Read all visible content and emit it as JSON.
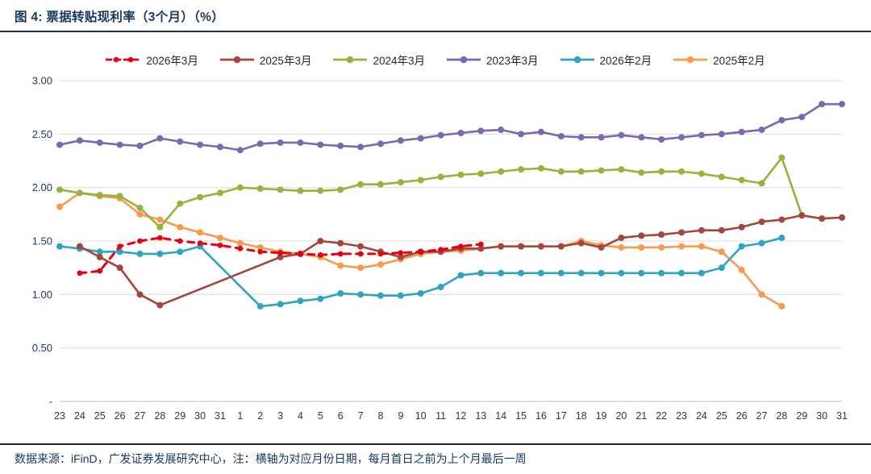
{
  "header": {
    "title": "图 4:  票据转贴现利率（3个月）（%）"
  },
  "footer": {
    "text": "数据来源：iFinD，广发证券发展研究中心，注：横轴为对应月份日期，每月首日之前为上个月最后一周"
  },
  "colors": {
    "title_text": "#17375E",
    "header_rule": "#17375E",
    "footer_rule": "#262626",
    "grid": "#DCDCDC",
    "axis_line": "#BFBFBF",
    "tick_text": "#1F3864"
  },
  "chart_data": {
    "type": "line",
    "title": "票据转贴现利率（3个月）（%）",
    "xlabel": "",
    "ylabel": "%",
    "ylim": [
      0,
      3
    ],
    "grid": true,
    "legend_position": "top",
    "yticks": [
      {
        "label": "3.00",
        "value": 3
      },
      {
        "label": "2.50",
        "value": 2.5
      },
      {
        "label": "2.00",
        "value": 2
      },
      {
        "label": "1.50",
        "value": 1.5
      },
      {
        "label": "1.00",
        "value": 1
      },
      {
        "label": "0.50",
        "value": 0.5
      },
      {
        "label": "-",
        "value": 0
      }
    ],
    "categories": [
      "23",
      "24",
      "25",
      "26",
      "27",
      "28",
      "29",
      "30",
      "31",
      "1",
      "2",
      "3",
      "4",
      "5",
      "6",
      "7",
      "8",
      "9",
      "10",
      "11",
      "12",
      "13",
      "14",
      "15",
      "16",
      "17",
      "18",
      "19",
      "20",
      "21",
      "22",
      "23",
      "24",
      "25",
      "26",
      "27",
      "28",
      "29",
      "30",
      "31"
    ],
    "series": [
      {
        "name": "2026年3月",
        "color": "#E60012",
        "dash": "8 7",
        "values": [
          null,
          1.2,
          1.22,
          1.45,
          1.5,
          1.53,
          1.5,
          1.48,
          1.46,
          1.43,
          1.4,
          1.39,
          1.38,
          1.37,
          1.38,
          1.38,
          1.38,
          1.39,
          1.4,
          1.42,
          1.45,
          1.47,
          null,
          null,
          null,
          null,
          null,
          null,
          null,
          null,
          null,
          null,
          null,
          null,
          null,
          null,
          null,
          null,
          null,
          null
        ]
      },
      {
        "name": "2025年3月",
        "color": "#A5463C",
        "dash": null,
        "values": [
          null,
          1.45,
          1.35,
          1.25,
          1.0,
          0.9,
          null,
          null,
          null,
          null,
          null,
          1.35,
          1.38,
          1.5,
          1.48,
          1.45,
          1.4,
          1.35,
          1.4,
          1.4,
          1.43,
          1.43,
          1.45,
          1.45,
          1.45,
          1.45,
          1.48,
          1.44,
          1.53,
          1.55,
          1.56,
          1.58,
          1.6,
          1.6,
          1.63,
          1.68,
          1.7,
          1.74,
          1.71,
          1.72
        ]
      },
      {
        "name": "2024年3月",
        "color": "#95B43C",
        "dash": null,
        "values": [
          1.98,
          1.95,
          1.93,
          1.92,
          1.81,
          1.63,
          1.85,
          1.91,
          1.95,
          2.0,
          1.99,
          1.98,
          1.97,
          1.97,
          1.98,
          2.03,
          2.03,
          2.05,
          2.07,
          2.1,
          2.12,
          2.13,
          2.15,
          2.17,
          2.18,
          2.15,
          2.15,
          2.16,
          2.17,
          2.14,
          2.15,
          2.15,
          2.13,
          2.1,
          2.07,
          2.04,
          2.28,
          1.74,
          null,
          null
        ]
      },
      {
        "name": "2023年3月",
        "color": "#7B68AE",
        "dash": null,
        "values": [
          2.4,
          2.44,
          2.42,
          2.4,
          2.39,
          2.46,
          2.43,
          2.4,
          2.38,
          2.35,
          2.41,
          2.42,
          2.42,
          2.4,
          2.39,
          2.38,
          2.41,
          2.44,
          2.46,
          2.49,
          2.51,
          2.53,
          2.54,
          2.5,
          2.52,
          2.48,
          2.47,
          2.47,
          2.49,
          2.47,
          2.45,
          2.47,
          2.49,
          2.5,
          2.52,
          2.54,
          2.63,
          2.66,
          2.78,
          2.78
        ]
      },
      {
        "name": "2026年2月",
        "color": "#2FA3C2",
        "dash": null,
        "values": [
          1.45,
          1.43,
          1.4,
          1.4,
          1.38,
          1.38,
          1.4,
          1.45,
          null,
          null,
          0.89,
          0.91,
          0.94,
          0.96,
          1.01,
          1.0,
          0.99,
          0.99,
          1.01,
          1.07,
          1.18,
          1.2,
          1.2,
          1.2,
          1.2,
          1.2,
          1.2,
          1.2,
          1.2,
          1.2,
          1.2,
          1.2,
          1.2,
          1.25,
          1.45,
          1.48,
          1.53,
          null,
          null,
          null
        ]
      },
      {
        "name": "2025年2月",
        "color": "#F79A4D",
        "dash": null,
        "values": [
          1.82,
          1.95,
          1.92,
          1.9,
          1.75,
          1.7,
          1.63,
          1.58,
          1.53,
          1.48,
          1.44,
          1.4,
          1.38,
          1.35,
          1.27,
          1.25,
          1.28,
          1.33,
          1.38,
          1.4,
          1.41,
          1.43,
          1.45,
          1.45,
          1.45,
          1.45,
          1.5,
          1.46,
          1.44,
          1.44,
          1.44,
          1.45,
          1.45,
          1.4,
          1.23,
          1.0,
          0.89,
          null,
          null,
          null
        ]
      }
    ]
  }
}
